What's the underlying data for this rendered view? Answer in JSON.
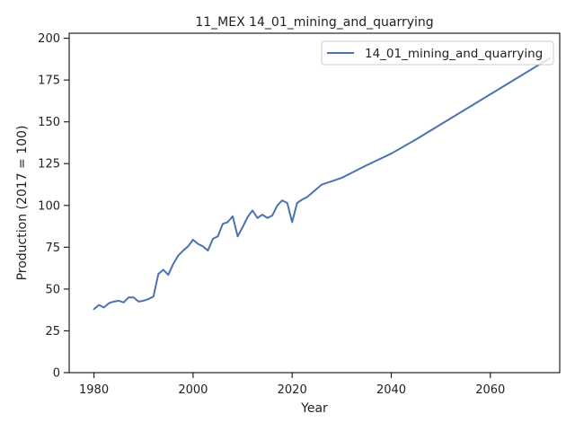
{
  "chart_data": {
    "type": "line",
    "title": "11_MEX 14_01_mining_and_quarrying",
    "xlabel": "Year",
    "ylabel": "Production (2017 = 100)",
    "xlim": [
      1975,
      2074
    ],
    "ylim": [
      0,
      203
    ],
    "xticks": [
      1980,
      2000,
      2020,
      2040,
      2060
    ],
    "yticks": [
      0,
      25,
      50,
      75,
      100,
      125,
      150,
      175,
      200
    ],
    "grid": false,
    "legend_position": "top-right",
    "series": [
      {
        "name": "14_01_mining_and_quarrying",
        "color": "#4c72b0",
        "points": [
          [
            1980,
            38
          ],
          [
            1981,
            40.5
          ],
          [
            1982,
            39
          ],
          [
            1983,
            41.5
          ],
          [
            1984,
            42.5
          ],
          [
            1985,
            43
          ],
          [
            1986,
            42
          ],
          [
            1987,
            45
          ],
          [
            1988,
            45
          ],
          [
            1989,
            42.5
          ],
          [
            1990,
            43
          ],
          [
            1991,
            44
          ],
          [
            1992,
            45.5
          ],
          [
            1993,
            59
          ],
          [
            1994,
            61.5
          ],
          [
            1995,
            58.5
          ],
          [
            1996,
            65
          ],
          [
            1997,
            70
          ],
          [
            1998,
            73
          ],
          [
            1999,
            75.5
          ],
          [
            2000,
            79.5
          ],
          [
            2001,
            77
          ],
          [
            2002,
            75.5
          ],
          [
            2003,
            73
          ],
          [
            2004,
            80
          ],
          [
            2005,
            81.5
          ],
          [
            2006,
            89
          ],
          [
            2007,
            90
          ],
          [
            2008,
            93.5
          ],
          [
            2009,
            81.5
          ],
          [
            2010,
            87
          ],
          [
            2011,
            93
          ],
          [
            2012,
            97
          ],
          [
            2013,
            92.5
          ],
          [
            2014,
            94.5
          ],
          [
            2015,
            92.5
          ],
          [
            2016,
            94
          ],
          [
            2017,
            100
          ],
          [
            2018,
            103
          ],
          [
            2019,
            101.5
          ],
          [
            2020,
            90
          ],
          [
            2021,
            101.5
          ],
          [
            2022,
            103.5
          ],
          [
            2023,
            105
          ],
          [
            2024,
            107.5
          ],
          [
            2025,
            110
          ],
          [
            2026,
            112.5
          ],
          [
            2027,
            113.5
          ],
          [
            2028,
            114.5
          ],
          [
            2030,
            116.5
          ],
          [
            2032,
            119.5
          ],
          [
            2035,
            124
          ],
          [
            2040,
            131
          ],
          [
            2045,
            139.5
          ],
          [
            2050,
            148.5
          ],
          [
            2055,
            157.5
          ],
          [
            2060,
            166.5
          ],
          [
            2065,
            175.5
          ],
          [
            2070,
            184.5
          ],
          [
            2072,
            188
          ]
        ]
      }
    ]
  }
}
